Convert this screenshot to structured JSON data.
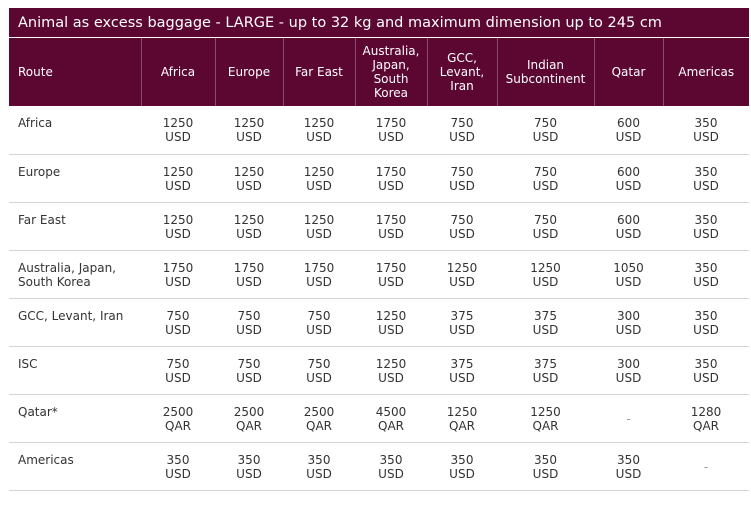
{
  "title": "Animal as excess baggage - LARGE - up to 32 kg and maximum dimension up to 245 cm",
  "headers": [
    "Route",
    "Africa",
    "Europe",
    "Far East",
    "Australia, Japan, South Korea",
    "GCC, Levant, Iran",
    "Indian Subcontinent",
    "Qatar",
    "Americas"
  ],
  "header_lines": [
    [
      "Route"
    ],
    [
      "Africa"
    ],
    [
      "Europe"
    ],
    [
      "Far East"
    ],
    [
      "Australia,",
      "Japan,",
      "South",
      "Korea"
    ],
    [
      "GCC,",
      "Levant,",
      "Iran"
    ],
    [
      "Indian",
      "Subcontinent"
    ],
    [
      "Qatar"
    ],
    [
      "Americas"
    ]
  ],
  "rows": [
    {
      "route": [
        "Africa"
      ],
      "cells": [
        [
          "1250",
          "USD"
        ],
        [
          "1250",
          "USD"
        ],
        [
          "1250",
          "USD"
        ],
        [
          "1750",
          "USD"
        ],
        [
          "750",
          "USD"
        ],
        [
          "750",
          "USD"
        ],
        [
          "600",
          "USD"
        ],
        [
          "350",
          "USD"
        ]
      ]
    },
    {
      "route": [
        "Europe"
      ],
      "cells": [
        [
          "1250",
          "USD"
        ],
        [
          "1250",
          "USD"
        ],
        [
          "1250",
          "USD"
        ],
        [
          "1750",
          "USD"
        ],
        [
          "750",
          "USD"
        ],
        [
          "750",
          "USD"
        ],
        [
          "600",
          "USD"
        ],
        [
          "350",
          "USD"
        ]
      ]
    },
    {
      "route": [
        "Far East"
      ],
      "cells": [
        [
          "1250",
          "USD"
        ],
        [
          "1250",
          "USD"
        ],
        [
          "1250",
          "USD"
        ],
        [
          "1750",
          "USD"
        ],
        [
          "750",
          "USD"
        ],
        [
          "750",
          "USD"
        ],
        [
          "600",
          "USD"
        ],
        [
          "350",
          "USD"
        ]
      ]
    },
    {
      "route": [
        "Australia, Japan,",
        "South Korea"
      ],
      "cells": [
        [
          "1750",
          "USD"
        ],
        [
          "1750",
          "USD"
        ],
        [
          "1750",
          "USD"
        ],
        [
          "1750",
          "USD"
        ],
        [
          "1250",
          "USD"
        ],
        [
          "1250",
          "USD"
        ],
        [
          "1050",
          "USD"
        ],
        [
          "350",
          "USD"
        ]
      ]
    },
    {
      "route": [
        "GCC, Levant, Iran"
      ],
      "cells": [
        [
          "750",
          "USD"
        ],
        [
          "750",
          "USD"
        ],
        [
          "750",
          "USD"
        ],
        [
          "1250",
          "USD"
        ],
        [
          "375",
          "USD"
        ],
        [
          "375",
          "USD"
        ],
        [
          "300",
          "USD"
        ],
        [
          "350",
          "USD"
        ]
      ]
    },
    {
      "route": [
        "ISC"
      ],
      "cells": [
        [
          "750",
          "USD"
        ],
        [
          "750",
          "USD"
        ],
        [
          "750",
          "USD"
        ],
        [
          "1250",
          "USD"
        ],
        [
          "375",
          "USD"
        ],
        [
          "375",
          "USD"
        ],
        [
          "300",
          "USD"
        ],
        [
          "350",
          "USD"
        ]
      ]
    },
    {
      "route": [
        "Qatar*"
      ],
      "cells": [
        [
          "2500",
          "QAR"
        ],
        [
          "2500",
          "QAR"
        ],
        [
          "2500",
          "QAR"
        ],
        [
          "4500",
          "QAR"
        ],
        [
          "1250",
          "QAR"
        ],
        [
          "1250",
          "QAR"
        ],
        [
          "-"
        ],
        [
          "1280",
          "QAR"
        ]
      ]
    },
    {
      "route": [
        "Americas"
      ],
      "cells": [
        [
          "350",
          "USD"
        ],
        [
          "350",
          "USD"
        ],
        [
          "350",
          "USD"
        ],
        [
          "350",
          "USD"
        ],
        [
          "350",
          "USD"
        ],
        [
          "350",
          "USD"
        ],
        [
          "350",
          "USD"
        ],
        [
          "-"
        ]
      ]
    }
  ],
  "colors": {
    "header_bg": "#5c0632",
    "header_text": "#ffffff",
    "body_text": "#333333",
    "row_border": "#d4d4d4"
  }
}
